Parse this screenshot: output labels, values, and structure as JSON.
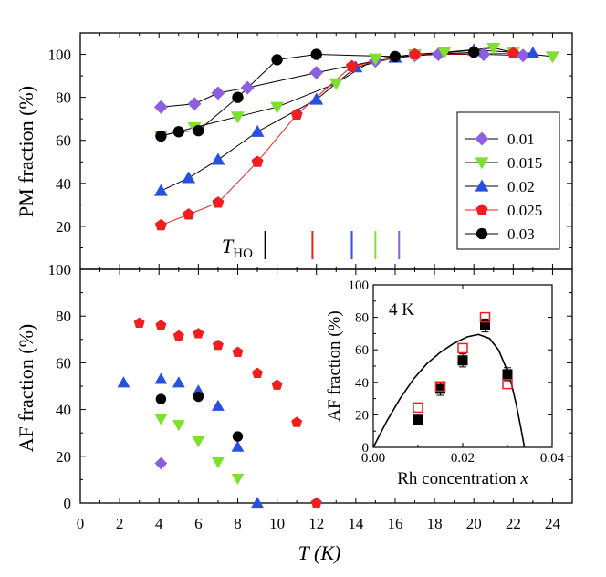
{
  "chart_data": [
    {
      "type": "scatter",
      "panel": "top",
      "title": "",
      "xlabel": "T (K)",
      "ylabel": "PM fraction (%)",
      "xlim": [
        0,
        25
      ],
      "ylim": [
        0,
        110
      ],
      "y_ticks": [
        20,
        40,
        60,
        80,
        100
      ],
      "connected_lines": true,
      "legend_position": "right-middle",
      "series": [
        {
          "name": "0.01",
          "marker": "diamond",
          "color": "#8a5fe0",
          "points": [
            [
              4.1,
              75.5
            ],
            [
              5.8,
              77
            ],
            [
              7,
              82
            ],
            [
              8.5,
              84.5
            ],
            [
              12,
              91.5
            ],
            [
              15,
              97
            ],
            [
              17,
              99.5
            ],
            [
              18.2,
              100
            ],
            [
              20.5,
              100
            ],
            [
              22.5,
              99.5
            ]
          ]
        },
        {
          "name": "0.015",
          "marker": "triangle-down",
          "color": "#7ee02e",
          "points": [
            [
              4.1,
              62
            ],
            [
              5.8,
              66
            ],
            [
              8,
              71
            ],
            [
              10,
              75.5
            ],
            [
              13,
              86.5
            ],
            [
              15,
              98
            ],
            [
              17,
              100
            ],
            [
              18.5,
              101
            ],
            [
              21,
              103
            ],
            [
              22,
              101
            ],
            [
              24,
              99
            ]
          ]
        },
        {
          "name": "0.02",
          "marker": "triangle-up",
          "color": "#2850e0",
          "points": [
            [
              4.1,
              36.5
            ],
            [
              5.5,
              42.5
            ],
            [
              7,
              51
            ],
            [
              9,
              64
            ],
            [
              12,
              79
            ],
            [
              14,
              94
            ],
            [
              16,
              98.5
            ],
            [
              20,
              102
            ],
            [
              23,
              100.5
            ]
          ]
        },
        {
          "name": "0.025",
          "marker": "pentagon",
          "color": "#f01e1e",
          "points": [
            [
              4.1,
              20.5
            ],
            [
              5.5,
              25.5
            ],
            [
              7,
              31
            ],
            [
              9,
              50
            ],
            [
              11,
              72
            ],
            [
              13.8,
              94.5
            ],
            [
              17,
              100
            ],
            [
              22,
              100.5
            ]
          ]
        },
        {
          "name": "0.03",
          "marker": "circle",
          "color": "#000000",
          "points": [
            [
              4.1,
              62
            ],
            [
              5,
              64
            ],
            [
              6,
              64.5
            ],
            [
              8,
              80
            ],
            [
              10,
              97.5
            ],
            [
              12,
              100
            ],
            [
              16,
              99
            ],
            [
              20,
              101
            ]
          ]
        }
      ],
      "annotation": {
        "text_main": "T",
        "text_sub": "HO",
        "marks": [
          {
            "x": 9.4,
            "color": "#000000"
          },
          {
            "x": 11.8,
            "color": "#f01e1e"
          },
          {
            "x": 13.8,
            "color": "#2850e0"
          },
          {
            "x": 15.0,
            "color": "#7ee02e"
          },
          {
            "x": 16.2,
            "color": "#8a5fe0"
          }
        ]
      }
    },
    {
      "type": "scatter",
      "panel": "bottom",
      "title": "",
      "xlabel": "T (K)",
      "ylabel": "AF fraction (%)",
      "xlim": [
        0,
        25
      ],
      "ylim": [
        0,
        100
      ],
      "x_ticks": [
        0,
        2,
        4,
        6,
        8,
        10,
        12,
        14,
        16,
        18,
        20,
        22,
        24
      ],
      "y_ticks": [
        0,
        20,
        40,
        60,
        80,
        100
      ],
      "connected_lines": false,
      "series": [
        {
          "name": "0.01",
          "marker": "diamond",
          "color": "#8a5fe0",
          "points": [
            [
              4.1,
              17
            ]
          ]
        },
        {
          "name": "0.015",
          "marker": "triangle-down",
          "color": "#7ee02e",
          "points": [
            [
              4.1,
              36
            ],
            [
              5,
              33.5
            ],
            [
              6,
              26.5
            ],
            [
              7,
              17.5
            ],
            [
              8,
              10.5
            ]
          ]
        },
        {
          "name": "0.02",
          "marker": "triangle-up",
          "color": "#2850e0",
          "points": [
            [
              2.2,
              51.5
            ],
            [
              4.1,
              53
            ],
            [
              5,
              51.5
            ],
            [
              6,
              48
            ],
            [
              7,
              41.5
            ],
            [
              8,
              24
            ],
            [
              9,
              0
            ]
          ]
        },
        {
          "name": "0.025",
          "marker": "pentagon",
          "color": "#f01e1e",
          "points": [
            [
              3,
              77
            ],
            [
              4.1,
              76
            ],
            [
              5,
              71.5
            ],
            [
              6,
              72.5
            ],
            [
              7,
              67.5
            ],
            [
              8,
              64.5
            ],
            [
              9,
              55.5
            ],
            [
              10,
              50.5
            ],
            [
              11,
              34.5
            ],
            [
              12,
              0
            ]
          ]
        },
        {
          "name": "0.03",
          "marker": "circle",
          "color": "#000000",
          "points": [
            [
              4.1,
              44.5
            ],
            [
              6,
              45.5
            ],
            [
              8,
              28.5
            ]
          ]
        }
      ]
    },
    {
      "type": "scatter",
      "panel": "inset",
      "title": "",
      "annotation_text": "4 K",
      "xlabel_text": "Rh concentration ",
      "xlabel_var": "x",
      "ylabel": "AF fraction (%)",
      "xlim": [
        0,
        0.04
      ],
      "ylim": [
        0,
        100
      ],
      "x_ticks": [
        "0.00",
        "0.02",
        "0.04"
      ],
      "y_ticks": [
        0,
        20,
        40,
        60,
        80,
        100
      ],
      "series": [
        {
          "name": "filled",
          "marker": "square-filled",
          "color": "#000000",
          "points": [
            [
              0.01,
              17
            ],
            [
              0.015,
              36
            ],
            [
              0.02,
              53.5
            ],
            [
              0.025,
              75
            ],
            [
              0.03,
              45
            ]
          ],
          "error": [
            2,
            4,
            4,
            4,
            4
          ]
        },
        {
          "name": "open",
          "marker": "square-open",
          "color": "#f01e1e",
          "points": [
            [
              0.01,
              24.5
            ],
            [
              0.015,
              37.5
            ],
            [
              0.02,
              61
            ],
            [
              0.025,
              80
            ],
            [
              0.03,
              39
            ]
          ]
        }
      ],
      "curve": [
        [
          0.0,
          0
        ],
        [
          0.003,
          16
        ],
        [
          0.006,
          30
        ],
        [
          0.009,
          42
        ],
        [
          0.012,
          51.5
        ],
        [
          0.015,
          58.5
        ],
        [
          0.018,
          64
        ],
        [
          0.021,
          68
        ],
        [
          0.0235,
          69.5
        ],
        [
          0.026,
          67
        ],
        [
          0.028,
          60
        ],
        [
          0.03,
          47
        ],
        [
          0.031,
          38
        ],
        [
          0.032,
          26
        ],
        [
          0.033,
          12
        ],
        [
          0.0338,
          0
        ]
      ]
    }
  ]
}
